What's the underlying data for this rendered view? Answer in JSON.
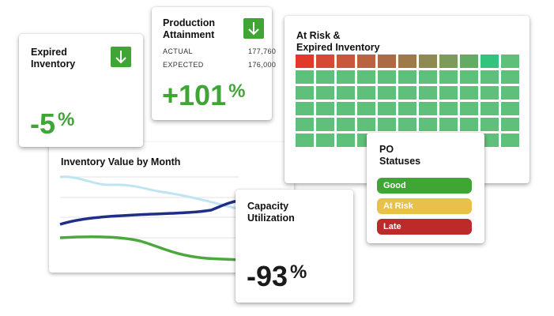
{
  "expired": {
    "title_line1": "Expired",
    "title_line2": "Inventory",
    "value": "-5",
    "unit": "%",
    "arrow": "arrow-down-icon",
    "color": "#3fa535"
  },
  "production": {
    "title_line1": "Production",
    "title_line2": "Attainment",
    "actual_label": "ACTUAL",
    "actual_value": "177,760",
    "expected_label": "EXPECTED",
    "expected_value": "176,000",
    "value": "+101",
    "unit": "%",
    "arrow": "arrow-down-icon"
  },
  "atrisk": {
    "title_line1": "At Risk &",
    "title_line2": "Expired Inventory",
    "first_row_colors": [
      "#e23a2a",
      "#d64a35",
      "#c9573c",
      "#bb623f",
      "#ad6b45",
      "#9c7a4b",
      "#8e8a52",
      "#7c9a5b",
      "#64ac66",
      "#33c37e",
      "#5ec07a"
    ],
    "cell_color": "#5ec07a"
  },
  "inventory": {
    "title": "Inventory Value by Month",
    "series_colors": {
      "light": "#bfe4f2",
      "navy": "#1f2f88",
      "green": "#4aa83c"
    }
  },
  "capacity": {
    "title_line1": "Capacity",
    "title_line2": "Utilization",
    "value": "-93",
    "unit": "%"
  },
  "po": {
    "title_line1": "PO",
    "title_line2": "Statuses",
    "statuses": [
      {
        "label": "Good",
        "color": "#3fa535"
      },
      {
        "label": "At Risk",
        "color": "#e8c14b"
      },
      {
        "label": "Late",
        "color": "#bd2a2a"
      }
    ]
  }
}
